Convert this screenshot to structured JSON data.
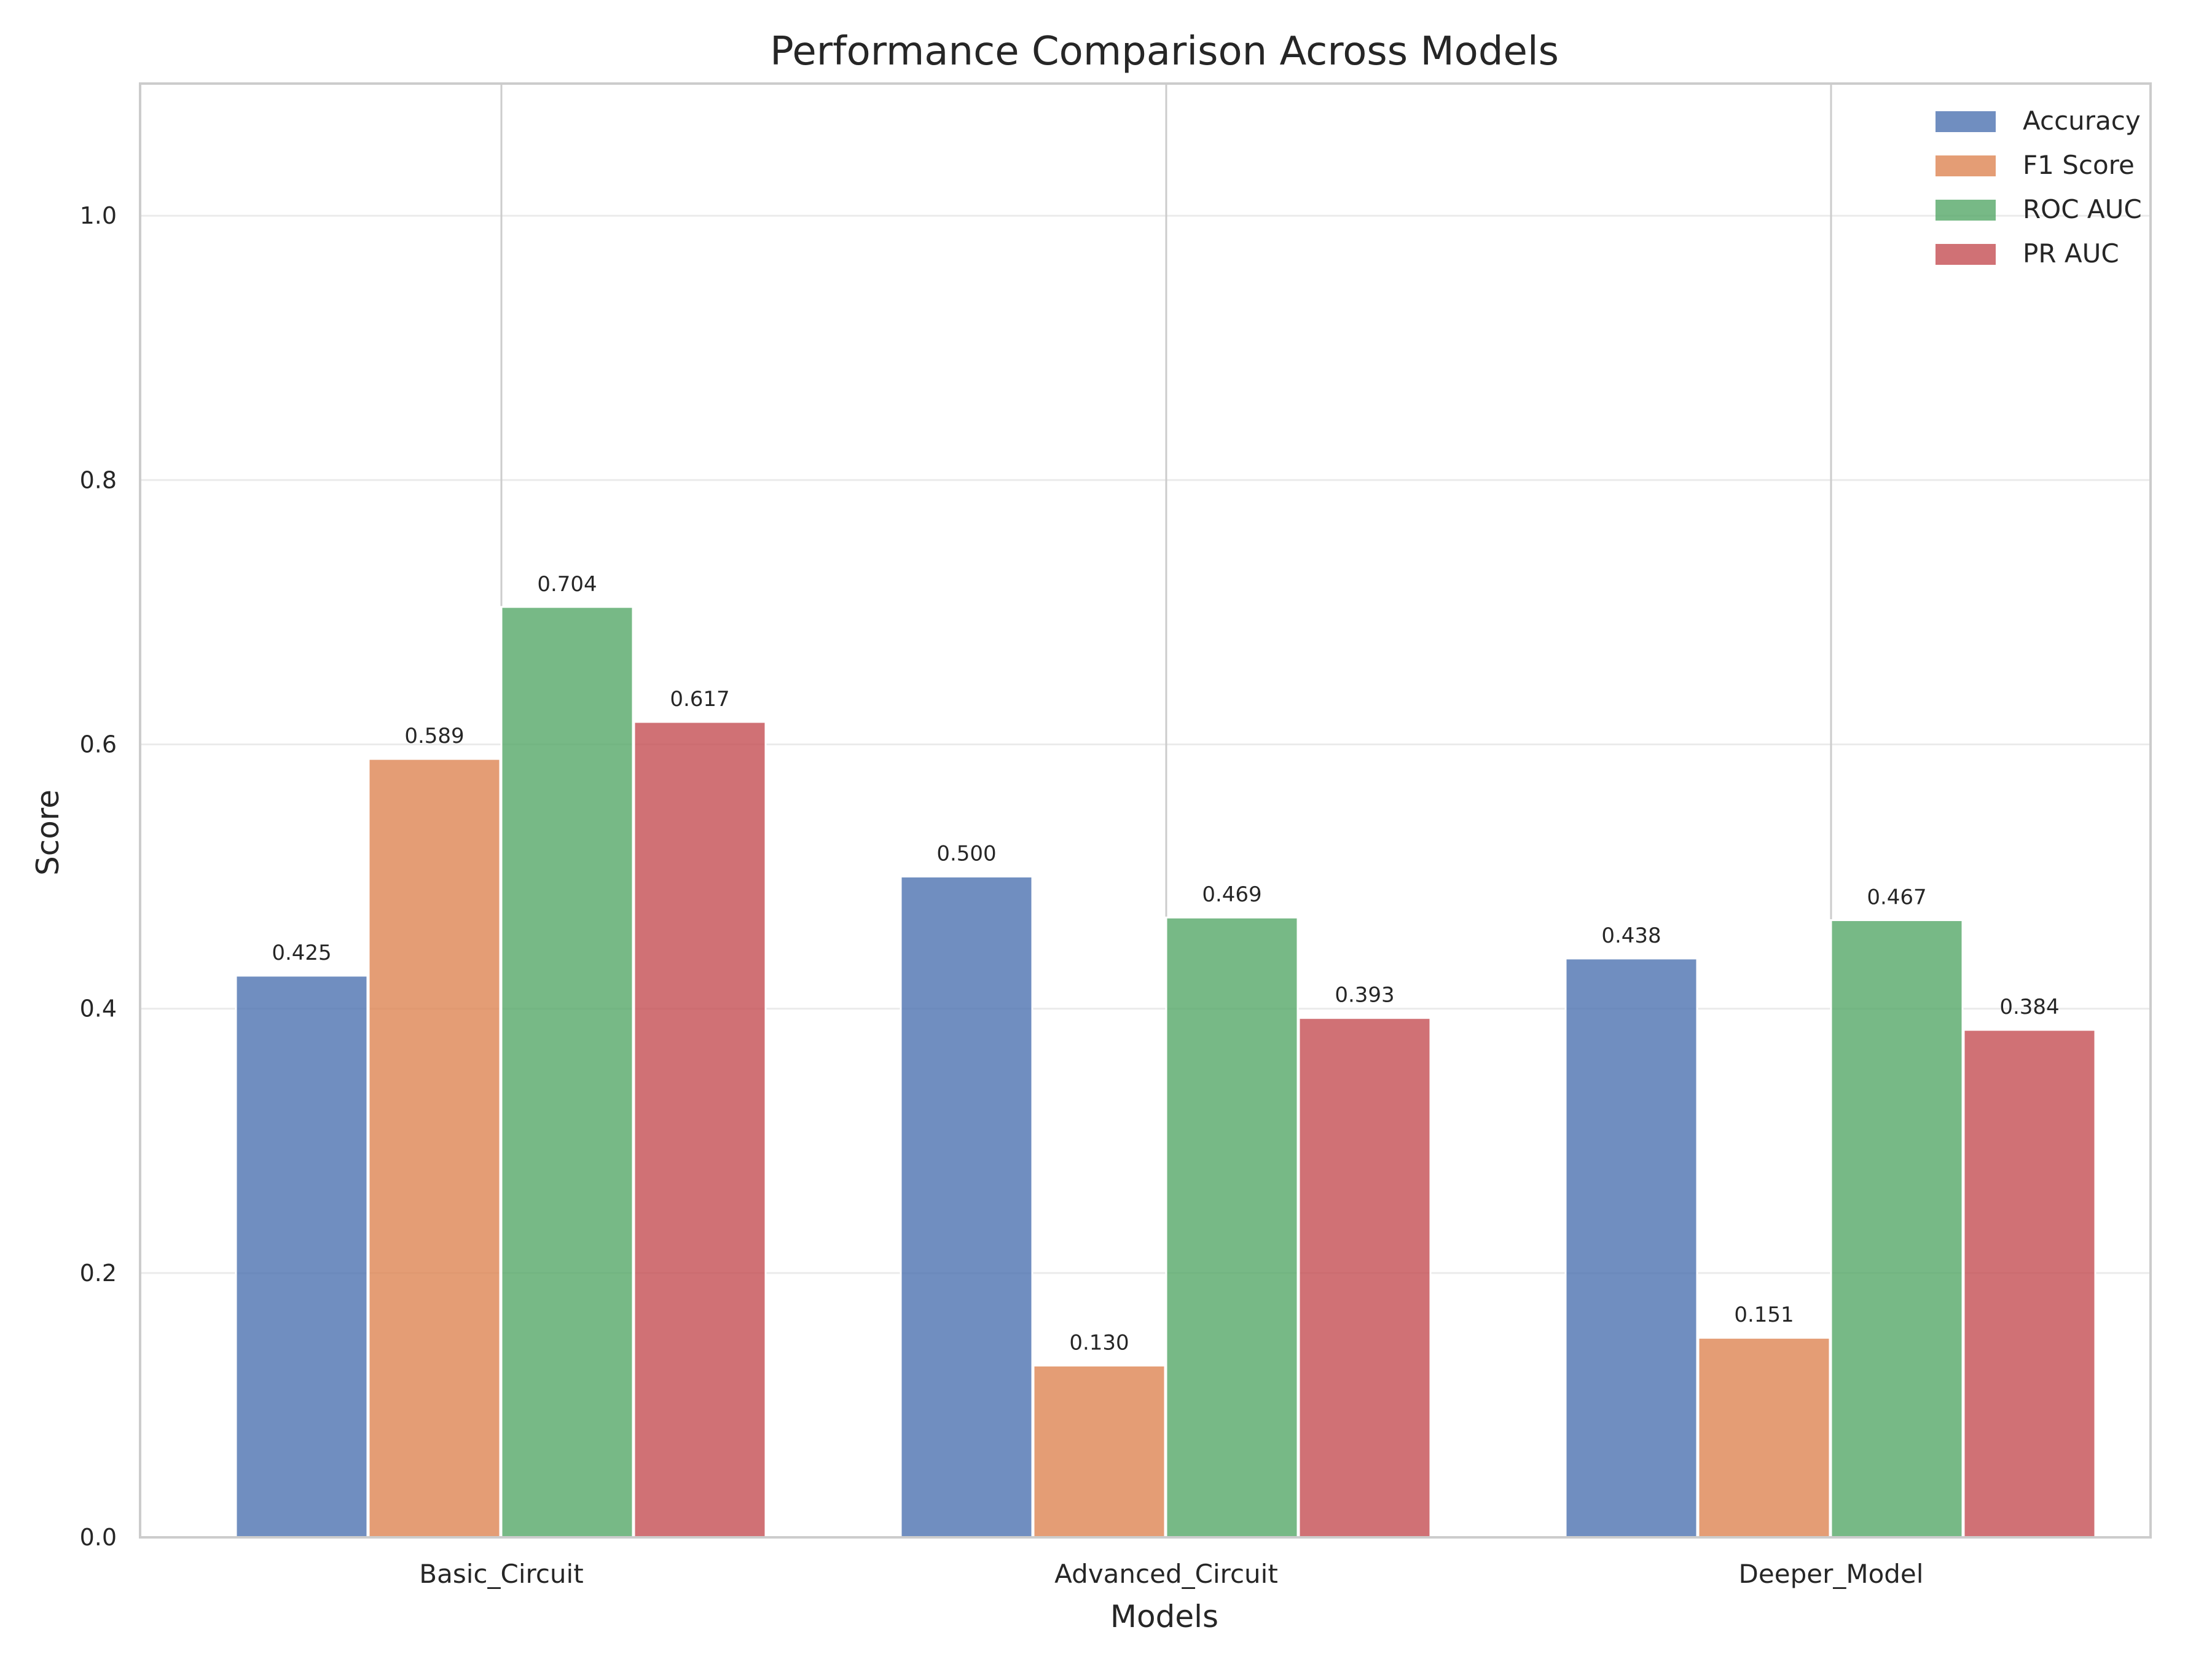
{
  "chart_data": {
    "type": "bar",
    "title": "Performance Comparison Across Models",
    "xlabel": "Models",
    "ylabel": "Score",
    "ylim": [
      0,
      1.1
    ],
    "yticks": [
      "0.0",
      "0.2",
      "0.4",
      "0.6",
      "0.8",
      "1.0"
    ],
    "grid": "horizontal",
    "legend_position": "top-right",
    "categories": [
      "Basic_Circuit",
      "Advanced_Circuit",
      "Deeper_Model"
    ],
    "series": [
      {
        "name": "Accuracy",
        "color": "#4c72b0",
        "values": [
          0.425,
          0.5,
          0.438
        ],
        "labels": [
          "0.425",
          "0.500",
          "0.438"
        ]
      },
      {
        "name": "F1 Score",
        "color": "#dd8452",
        "values": [
          0.589,
          0.13,
          0.151
        ],
        "labels": [
          "0.589",
          "0.130",
          "0.151"
        ]
      },
      {
        "name": "ROC AUC",
        "color": "#55a868",
        "values": [
          0.704,
          0.469,
          0.467
        ],
        "labels": [
          "0.704",
          "0.469",
          "0.467"
        ]
      },
      {
        "name": "PR AUC",
        "color": "#c44e52",
        "values": [
          0.617,
          0.393,
          0.384
        ],
        "labels": [
          "0.617",
          "0.393",
          "0.384"
        ]
      }
    ]
  }
}
